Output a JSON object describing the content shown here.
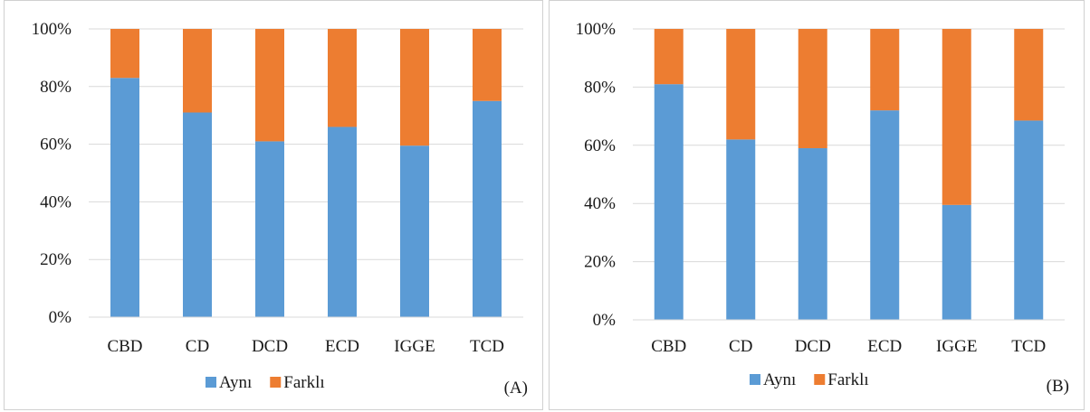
{
  "chart_data": [
    {
      "type": "bar",
      "stacked": true,
      "percent": true,
      "panel_label": "(A)",
      "categories": [
        "CBD",
        "CD",
        "DCD",
        "ECD",
        "IGGE",
        "TCD"
      ],
      "series": [
        {
          "name": "Aynı",
          "color": "#5b9bd5",
          "values": [
            83,
            71,
            61,
            66,
            59.5,
            75
          ]
        },
        {
          "name": "Farklı",
          "color": "#ed7d31",
          "values": [
            17,
            29,
            39,
            34,
            40.5,
            25
          ]
        }
      ],
      "ylim": [
        0,
        100
      ],
      "yticks": [
        "0%",
        "20%",
        "40%",
        "60%",
        "80%",
        "100%"
      ],
      "grid": true,
      "legend": "bottom"
    },
    {
      "type": "bar",
      "stacked": true,
      "percent": true,
      "panel_label": "(B)",
      "categories": [
        "CBD",
        "CD",
        "DCD",
        "ECD",
        "IGGE",
        "TCD"
      ],
      "series": [
        {
          "name": "Aynı",
          "color": "#5b9bd5",
          "values": [
            81,
            62,
            59,
            72,
            39.5,
            68.5
          ]
        },
        {
          "name": "Farklı",
          "color": "#ed7d31",
          "values": [
            19,
            38,
            41,
            28,
            60.5,
            31.5
          ]
        }
      ],
      "ylim": [
        0,
        100
      ],
      "yticks": [
        "0%",
        "20%",
        "40%",
        "60%",
        "80%",
        "100%"
      ],
      "grid": true,
      "legend": "bottom"
    }
  ]
}
